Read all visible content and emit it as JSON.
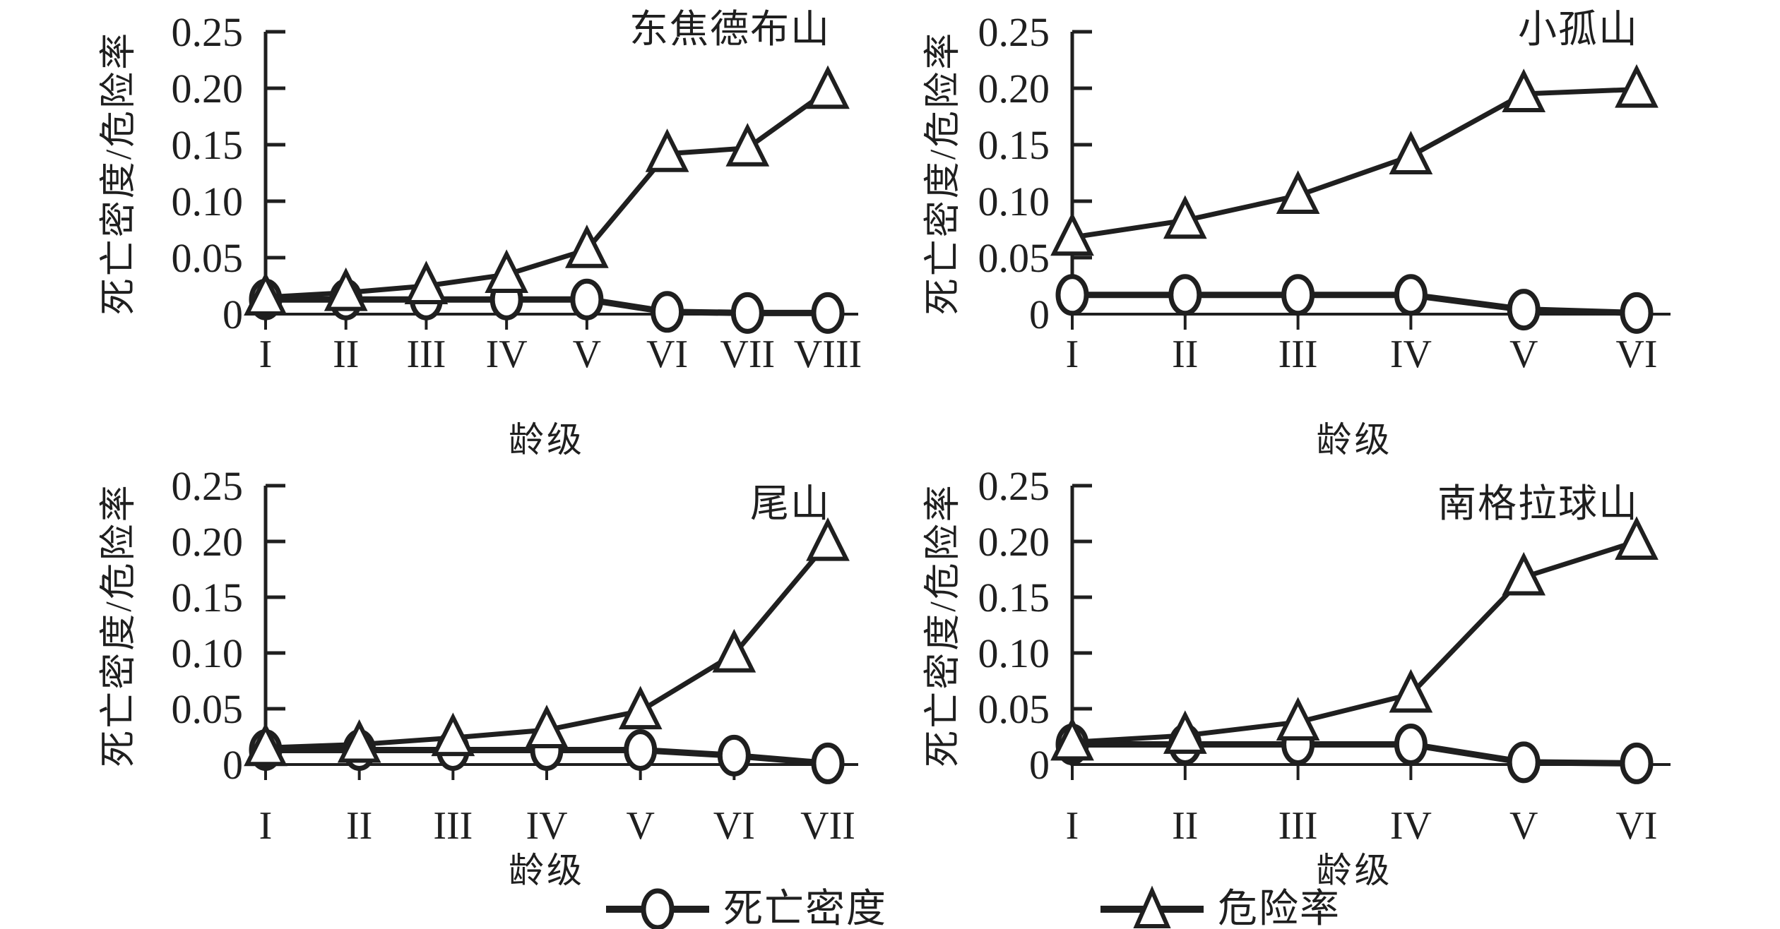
{
  "figure": {
    "background": "#ffffff",
    "ink_color": "#1f1f1f"
  },
  "legend": {
    "items": [
      {
        "label": "死亡密度",
        "marker": "circle"
      },
      {
        "label": "危险率",
        "marker": "triangle"
      }
    ]
  },
  "chart_data": [
    {
      "type": "line",
      "title": "东焦德布山",
      "xlabel": "龄级",
      "ylabel": "死亡密度/危险率",
      "ylim": [
        0,
        0.25
      ],
      "yticks": [
        0,
        0.05,
        0.1,
        0.15,
        0.2,
        0.25
      ],
      "ytick_labels": [
        "0",
        "0.05",
        "0.10",
        "0.15",
        "0.20",
        "0.25"
      ],
      "categories": [
        "I",
        "II",
        "III",
        "IV",
        "V",
        "VI",
        "VII",
        "VIII"
      ],
      "grid": false,
      "legend_position": "none",
      "series": [
        {
          "name": "死亡密度",
          "marker": "circle",
          "values": [
            0.013,
            0.013,
            0.013,
            0.013,
            0.013,
            0.002,
            0.001,
            0.001
          ]
        },
        {
          "name": "危险率",
          "marker": "triangle",
          "values": [
            0.015,
            0.019,
            0.025,
            0.035,
            0.057,
            0.142,
            0.147,
            0.198
          ]
        }
      ]
    },
    {
      "type": "line",
      "title": "小孤山",
      "xlabel": "龄级",
      "ylabel": "死亡密度/危险率",
      "ylim": [
        0,
        0.25
      ],
      "yticks": [
        0,
        0.05,
        0.1,
        0.15,
        0.2,
        0.25
      ],
      "ytick_labels": [
        "0",
        "0.05",
        "0.10",
        "0.15",
        "0.20",
        "0.25"
      ],
      "categories": [
        "I",
        "II",
        "III",
        "IV",
        "V",
        "VI"
      ],
      "grid": false,
      "legend_position": "none",
      "series": [
        {
          "name": "死亡密度",
          "marker": "circle",
          "values": [
            0.017,
            0.017,
            0.017,
            0.017,
            0.004,
            0.001
          ]
        },
        {
          "name": "危险率",
          "marker": "triangle",
          "values": [
            0.068,
            0.083,
            0.105,
            0.14,
            0.195,
            0.199
          ]
        }
      ]
    },
    {
      "type": "line",
      "title": "尾山",
      "xlabel": "龄级",
      "ylabel": "死亡密度/危险率",
      "ylim": [
        0,
        0.25
      ],
      "yticks": [
        0,
        0.05,
        0.1,
        0.15,
        0.2,
        0.25
      ],
      "ytick_labels": [
        "0",
        "0.05",
        "0.10",
        "0.15",
        "0.20",
        "0.25"
      ],
      "categories": [
        "I",
        "II",
        "III",
        "IV",
        "V",
        "VI",
        "VII"
      ],
      "grid": false,
      "legend_position": "none",
      "series": [
        {
          "name": "死亡密度",
          "marker": "circle",
          "values": [
            0.013,
            0.013,
            0.013,
            0.013,
            0.013,
            0.008,
            0.001
          ]
        },
        {
          "name": "危险率",
          "marker": "triangle",
          "values": [
            0.015,
            0.018,
            0.024,
            0.031,
            0.048,
            0.099,
            0.199
          ]
        }
      ]
    },
    {
      "type": "line",
      "title": "南格拉球山",
      "xlabel": "龄级",
      "ylabel": "死亡密度/危险率",
      "ylim": [
        0,
        0.25
      ],
      "yticks": [
        0,
        0.05,
        0.1,
        0.15,
        0.2,
        0.25
      ],
      "ytick_labels": [
        "0",
        "0.05",
        "0.10",
        "0.15",
        "0.20",
        "0.25"
      ],
      "categories": [
        "I",
        "II",
        "III",
        "IV",
        "V",
        "VI"
      ],
      "grid": false,
      "legend_position": "none",
      "series": [
        {
          "name": "死亡密度",
          "marker": "circle",
          "values": [
            0.018,
            0.018,
            0.018,
            0.018,
            0.002,
            0.001
          ]
        },
        {
          "name": "危险率",
          "marker": "triangle",
          "values": [
            0.02,
            0.026,
            0.038,
            0.063,
            0.168,
            0.2
          ]
        }
      ]
    }
  ]
}
